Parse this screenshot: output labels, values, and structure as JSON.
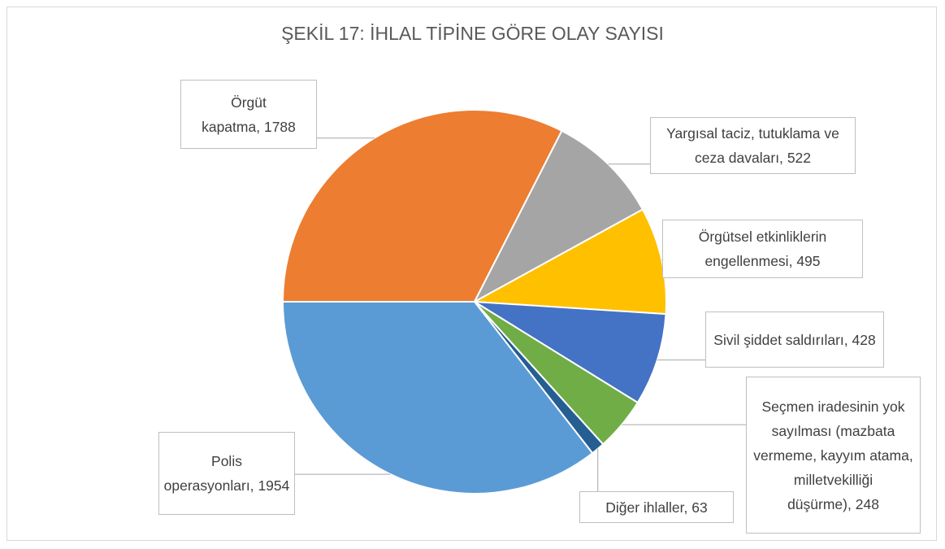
{
  "chart_data": {
    "type": "pie",
    "title": "ŞEKİL 17: İHLAL TİPİNE GÖRE OLAY SAYISI",
    "categories": [
      "Örgüt kapatma,",
      "Yargısal taciz, tutuklama ve ceza davaları,",
      "Örgütsel etkinliklerin engellenmesi,",
      "Sivil şiddet saldırıları,",
      "Seçmen iradesinin yok sayılması (mazbata vermeme, kayyım atama, milletvekilliği düşürme),",
      "Diğer ihlaller,",
      "Polis operasyonları,"
    ],
    "values": [
      1788,
      522,
      495,
      428,
      248,
      63,
      1954
    ],
    "colors": [
      "#ED7D31",
      "#A5A5A5",
      "#FFC000",
      "#4472C4",
      "#70AD47",
      "#255E91",
      "#5B9BD5"
    ]
  }
}
